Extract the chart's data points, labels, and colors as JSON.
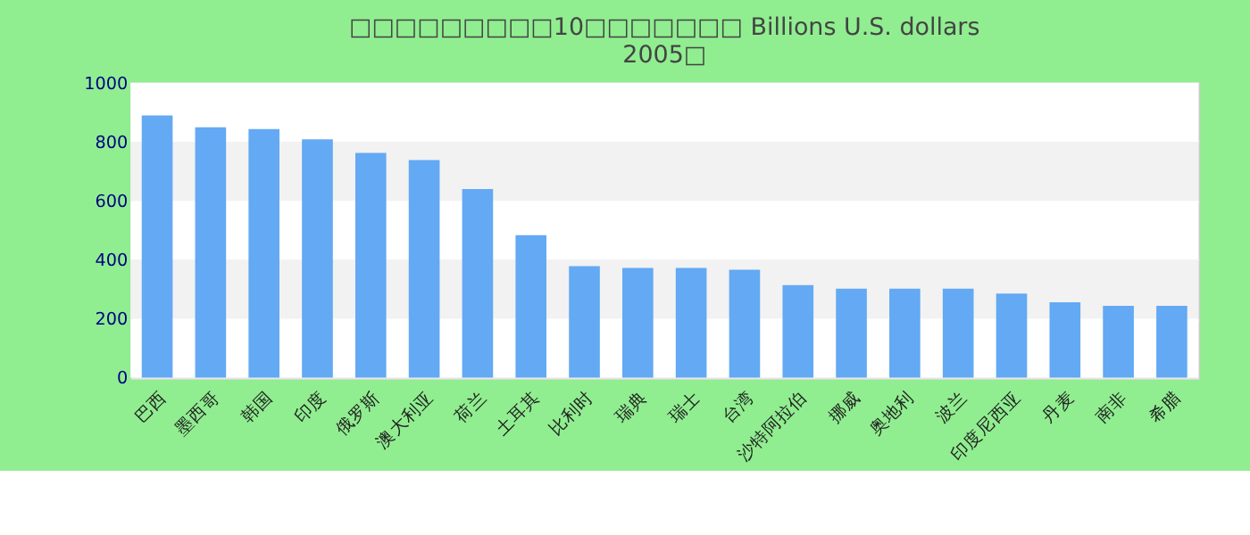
{
  "chart_data": {
    "type": "bar",
    "title": [
      "□□□□□□□□□10□□□□□□□ Billions U.S. dollars",
      "2005□"
    ],
    "categories": [
      "巴西",
      "墨西哥",
      "韩国",
      "印度",
      "俄罗斯",
      "澳大利亚",
      "荷兰",
      "土耳其",
      "比利时",
      "瑞典",
      "瑞士",
      "台湾",
      "沙特阿拉伯",
      "挪威",
      "奥地利",
      "波兰",
      "印度尼西亚",
      "丹麦",
      "南非",
      "希腊"
    ],
    "values": [
      889,
      849,
      843,
      808,
      762,
      738,
      640,
      483,
      378,
      372,
      372,
      366,
      314,
      302,
      302,
      302,
      285,
      256,
      244,
      244
    ],
    "color": "#63a9f3",
    "ylim": [
      0,
      1000
    ],
    "yticks": [
      0,
      200,
      400,
      600,
      800,
      1000
    ],
    "grid": "y"
  }
}
